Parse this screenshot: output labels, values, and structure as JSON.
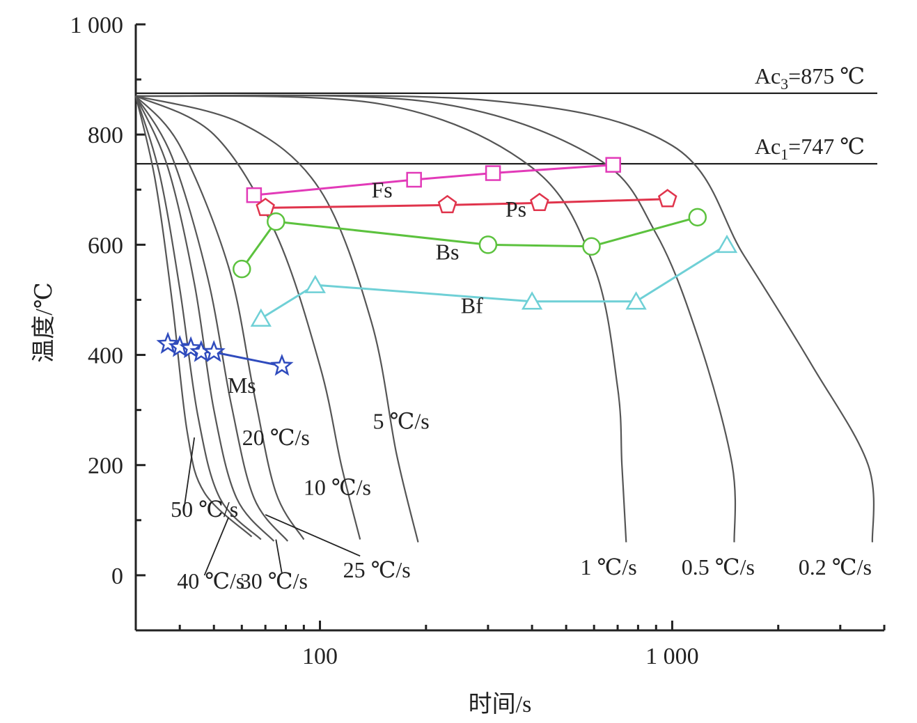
{
  "chart_data": {
    "type": "line",
    "title": "",
    "xlabel": "时间/s",
    "ylabel": "温度/℃",
    "x_scale": "log",
    "xlim": [
      30,
      4000
    ],
    "ylim": [
      -100,
      1000
    ],
    "x_tick_labels": [
      "100",
      "1 000"
    ],
    "x_tick_values": [
      100,
      1000
    ],
    "y_tick_labels": [
      "0",
      "200",
      "400",
      "600",
      "800",
      "1 000"
    ],
    "y_tick_values": [
      0,
      200,
      400,
      600,
      800,
      1000
    ],
    "colors": {
      "axis": "#222222",
      "cooling": "#555555",
      "Fs": "#e23ab8",
      "Ps": "#e0344c",
      "Bs": "#5cc23e",
      "Bf": "#6fd0d6",
      "Ms": "#2f4bbd"
    },
    "reference_lines": [
      {
        "name": "Ac3",
        "label": "Ac3=875 ℃",
        "label_main": "Ac",
        "label_sub": "3",
        "label_rest": "=875 ℃",
        "y": 875
      },
      {
        "name": "Ac1",
        "label": "Ac1=747 ℃",
        "label_main": "Ac",
        "label_sub": "1",
        "label_rest": "=747 ℃",
        "y": 747
      }
    ],
    "cooling_curves": [
      {
        "label": "0.2 ℃/s",
        "points": [
          [
            30,
            870
          ],
          [
            300,
            862
          ],
          [
            1000,
            780
          ],
          [
            1600,
            580
          ],
          [
            2500,
            380
          ],
          [
            3600,
            200
          ],
          [
            3700,
            60
          ]
        ]
      },
      {
        "label": "0.5 ℃/s",
        "points": [
          [
            30,
            870
          ],
          [
            200,
            860
          ],
          [
            600,
            760
          ],
          [
            900,
            620
          ],
          [
            1200,
            420
          ],
          [
            1480,
            200
          ],
          [
            1500,
            60
          ]
        ]
      },
      {
        "label": "1 ℃/s",
        "points": [
          [
            30,
            870
          ],
          [
            150,
            855
          ],
          [
            400,
            740
          ],
          [
            600,
            560
          ],
          [
            700,
            340
          ],
          [
            720,
            200
          ],
          [
            740,
            60
          ]
        ]
      },
      {
        "label": "5 ℃/s",
        "points": [
          [
            30,
            870
          ],
          [
            60,
            820
          ],
          [
            100,
            700
          ],
          [
            140,
            460
          ],
          [
            165,
            220
          ],
          [
            190,
            60
          ]
        ]
      },
      {
        "label": "10 ℃/s",
        "points": [
          [
            30,
            870
          ],
          [
            50,
            800
          ],
          [
            75,
            620
          ],
          [
            100,
            380
          ],
          [
            115,
            200
          ],
          [
            130,
            65
          ]
        ]
      },
      {
        "label": "20 ℃/s",
        "points": [
          [
            30,
            870
          ],
          [
            40,
            780
          ],
          [
            55,
            560
          ],
          [
            65,
            330
          ],
          [
            75,
            150
          ],
          [
            90,
            65
          ]
        ]
      },
      {
        "label": "25 ℃/s",
        "points": [
          [
            30,
            870
          ],
          [
            38,
            760
          ],
          [
            48,
            540
          ],
          [
            56,
            310
          ],
          [
            65,
            140
          ],
          [
            81,
            62
          ]
        ]
      },
      {
        "label": "30 ℃/s",
        "points": [
          [
            30,
            870
          ],
          [
            37,
            740
          ],
          [
            44,
            530
          ],
          [
            50,
            300
          ],
          [
            58,
            140
          ],
          [
            74,
            62
          ]
        ]
      },
      {
        "label": "40 ℃/s",
        "points": [
          [
            30,
            870
          ],
          [
            35,
            730
          ],
          [
            40,
            520
          ],
          [
            45,
            290
          ],
          [
            52,
            140
          ],
          [
            68,
            65
          ]
        ]
      },
      {
        "label": "50 ℃/s",
        "points": [
          [
            30,
            870
          ],
          [
            34,
            720
          ],
          [
            38,
            500
          ],
          [
            42,
            260
          ],
          [
            47,
            150
          ],
          [
            64,
            70
          ]
        ]
      }
    ],
    "curve_labels": [
      {
        "text": "0.2 ℃/s",
        "x": 2900,
        "y": 15
      },
      {
        "text": "0.5 ℃/s",
        "x": 1350,
        "y": 15
      },
      {
        "text": "1 ℃/s",
        "x": 660,
        "y": 15
      },
      {
        "text": "5 ℃/s",
        "x": 170,
        "y": 280
      },
      {
        "text": "10 ℃/s",
        "x": 112,
        "y": 160
      },
      {
        "text": "20 ℃/s",
        "x": 75,
        "y": 250
      },
      {
        "text": "25 ℃/s",
        "x": 145,
        "y": 10
      },
      {
        "text": "30 ℃/s",
        "x": 74,
        "y": -10
      },
      {
        "text": "40 ℃/s",
        "x": 49,
        "y": -10
      },
      {
        "text": "50 ℃/s",
        "x": 47,
        "y": 120
      }
    ],
    "leaders": [
      {
        "from": [
          41,
          115
        ],
        "to": [
          44,
          250
        ]
      },
      {
        "from": [
          47,
          0
        ],
        "to": [
          55,
          105
        ]
      },
      {
        "from": [
          78,
          3
        ],
        "to": [
          75,
          65
        ]
      },
      {
        "from": [
          130,
          35
        ],
        "to": [
          70,
          110
        ]
      }
    ],
    "series": [
      {
        "name": "Fs",
        "marker": "square",
        "x": [
          65,
          185,
          310,
          680
        ],
        "y": [
          690,
          718,
          730,
          745
        ],
        "label_x": 150,
        "label_y": 700
      },
      {
        "name": "Ps",
        "marker": "pentagon",
        "x": [
          70,
          230,
          420,
          970
        ],
        "y": [
          667,
          672,
          676,
          683
        ],
        "label_x": 360,
        "label_y": 665
      },
      {
        "name": "Bs",
        "marker": "circle",
        "x": [
          60,
          75,
          300,
          590,
          1180
        ],
        "y": [
          556,
          642,
          600,
          597,
          650
        ],
        "label_x": 230,
        "label_y": 587
      },
      {
        "name": "Bf",
        "marker": "triangle",
        "x": [
          68,
          97,
          400,
          790,
          1430
        ],
        "y": [
          466,
          527,
          497,
          497,
          600
        ],
        "label_x": 270,
        "label_y": 490
      },
      {
        "name": "Ms",
        "marker": "star",
        "x": [
          37,
          40,
          43,
          46,
          50,
          78
        ],
        "y": [
          420,
          414,
          412,
          405,
          405,
          380
        ],
        "label_x": 60,
        "label_y": 345
      }
    ]
  }
}
